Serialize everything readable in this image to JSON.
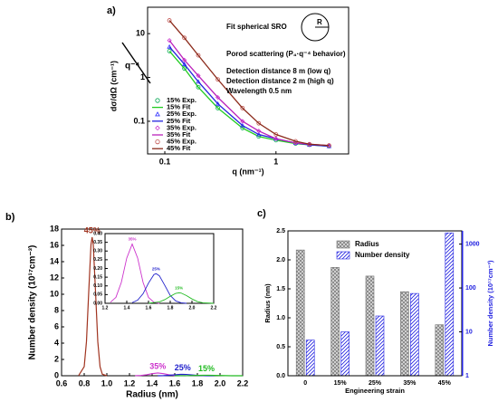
{
  "chart_data": [
    {
      "type": "scatter",
      "panel": "a)",
      "xlabel": "q (nm⁻¹)",
      "ylabel": "dσ/dΩ (cm⁻¹)",
      "xlog": true,
      "ylog": true,
      "xlim": [
        0.07,
        4.5
      ],
      "ylim": [
        0.018,
        40
      ],
      "xticks": [
        0.1,
        1
      ],
      "yticks": [
        0.1,
        1,
        10
      ],
      "annotations": [
        "Fit spherical SRO",
        "Porod scattering (P₄·q⁻⁴ behavior)",
        "Detection distance 8 m (low q)",
        "Detection distance 2 m (high q)",
        "Wavelength 0.5 nm",
        "q⁻⁴",
        "R"
      ],
      "legend": "lower left",
      "series": [
        {
          "name": "15% Exp.",
          "kind": "markers",
          "marker": "circle",
          "color": "#00a650",
          "x": [
            0.11,
            0.15,
            0.2,
            0.3,
            0.5,
            0.7,
            1,
            1.5,
            2,
            3
          ],
          "values": [
            4,
            1.6,
            0.6,
            0.2,
            0.07,
            0.045,
            0.037,
            0.031,
            0.029,
            0.027
          ]
        },
        {
          "name": "15% Fit",
          "kind": "line",
          "color": "#22cc22",
          "x": [
            0.11,
            0.15,
            0.2,
            0.3,
            0.5,
            0.7,
            1,
            1.5,
            2,
            3
          ],
          "values": [
            4,
            1.6,
            0.6,
            0.2,
            0.07,
            0.045,
            0.037,
            0.031,
            0.029,
            0.027
          ]
        },
        {
          "name": "25% Exp.",
          "kind": "markers",
          "marker": "triangle",
          "color": "#3333ff",
          "x": [
            0.11,
            0.15,
            0.2,
            0.3,
            0.5,
            0.7,
            1,
            1.5,
            2,
            3
          ],
          "values": [
            5,
            2,
            0.8,
            0.25,
            0.08,
            0.05,
            0.04,
            0.032,
            0.029,
            0.027
          ]
        },
        {
          "name": "25% Fit",
          "kind": "line",
          "color": "#2222dd",
          "x": [
            0.11,
            0.15,
            0.2,
            0.3,
            0.5,
            0.7,
            1,
            1.5,
            2,
            3
          ],
          "values": [
            5,
            2,
            0.8,
            0.25,
            0.08,
            0.05,
            0.04,
            0.032,
            0.029,
            0.027
          ]
        },
        {
          "name": "35% Exp.",
          "kind": "markers",
          "marker": "diamond",
          "color": "#cc33cc",
          "x": [
            0.11,
            0.15,
            0.2,
            0.3,
            0.5,
            0.7,
            1,
            1.5,
            2,
            3
          ],
          "values": [
            7,
            2.5,
            1.1,
            0.35,
            0.1,
            0.06,
            0.04,
            0.032,
            0.03,
            0.028
          ]
        },
        {
          "name": "35% Fit",
          "kind": "line",
          "color": "#bb22bb",
          "x": [
            0.11,
            0.15,
            0.2,
            0.3,
            0.5,
            0.7,
            1,
            1.5,
            2,
            3
          ],
          "values": [
            7,
            2.5,
            1.1,
            0.35,
            0.1,
            0.06,
            0.04,
            0.032,
            0.03,
            0.028
          ]
        },
        {
          "name": "45% Exp.",
          "kind": "markers",
          "marker": "circle",
          "color": "#c0504d",
          "x": [
            0.11,
            0.15,
            0.2,
            0.3,
            0.5,
            0.7,
            1,
            1.5,
            2,
            3
          ],
          "values": [
            20,
            8,
            3.2,
            0.9,
            0.2,
            0.09,
            0.05,
            0.035,
            0.03,
            0.028
          ]
        },
        {
          "name": "45% Fit",
          "kind": "line",
          "color": "#8b2a1a",
          "x": [
            0.11,
            0.15,
            0.2,
            0.3,
            0.5,
            0.7,
            1,
            1.5,
            2,
            3
          ],
          "values": [
            20,
            8,
            3.2,
            0.9,
            0.2,
            0.09,
            0.05,
            0.035,
            0.03,
            0.028
          ]
        }
      ]
    },
    {
      "type": "line",
      "panel": "b)",
      "xlabel": "Radius (nm)",
      "ylabel": "Number density (10¹⁷cm⁻³)",
      "xlim": [
        0.6,
        2.2
      ],
      "ylim": [
        0,
        18
      ],
      "xticks": [
        0.6,
        0.8,
        {
          "value": 1,
          "label": "1.0"
        },
        1.2,
        1.4,
        1.6,
        1.8,
        {
          "value": 2,
          "label": "2.0"
        },
        2.2
      ],
      "yticks": [
        0,
        2,
        4,
        6,
        8,
        10,
        12,
        14,
        16,
        18
      ],
      "inset": {
        "xlim": [
          1.2,
          2.2
        ],
        "ylim": [
          0,
          0.4
        ],
        "xticks": [
          1.2,
          1.4,
          1.6,
          1.8,
          {
            "value": 2,
            "label": "2.0"
          },
          2.2
        ],
        "yticks": [
          {
            "value": 0,
            "label": "0.00"
          },
          {
            "value": 0.05,
            "label": "0.05"
          },
          {
            "value": 0.1,
            "label": "0.10"
          },
          {
            "value": 0.15,
            "label": "0.15"
          },
          {
            "value": 0.2,
            "label": "0.20"
          },
          {
            "value": 0.25,
            "label": "0.25"
          },
          {
            "value": 0.3,
            "label": "0.30"
          },
          {
            "value": 0.35,
            "label": "0.35"
          },
          {
            "value": 0.4,
            "label": "0.40"
          }
        ]
      },
      "series": [
        {
          "name": "45%",
          "color": "#a0331f",
          "inset": false,
          "x": [
            0.75,
            0.8,
            0.82,
            0.84,
            0.86,
            0.87,
            0.88,
            0.9,
            0.92,
            0.94,
            0.96,
            1.0
          ],
          "values": [
            0.006,
            1.12,
            4.2,
            10.3,
            16.1,
            17,
            16.1,
            10.3,
            4.2,
            1.1,
            0.19,
            0
          ]
        },
        {
          "name": "35%",
          "color": "#cc33cc",
          "inset": true,
          "x": [
            1.25,
            1.3,
            1.35,
            1.4,
            1.45,
            1.5,
            1.55,
            1.6,
            1.65,
            1.7
          ],
          "values": [
            0.006,
            0.034,
            0.12,
            0.26,
            0.34,
            0.26,
            0.12,
            0.034,
            0.006,
            0
          ]
        },
        {
          "name": "25%",
          "color": "#2222cc",
          "inset": true,
          "x": [
            1.45,
            1.5,
            1.55,
            1.6,
            1.65,
            1.67,
            1.7,
            1.75,
            1.8,
            1.85,
            1.9,
            1.95
          ],
          "values": [
            0.004,
            0.018,
            0.055,
            0.116,
            0.165,
            0.17,
            0.158,
            0.103,
            0.045,
            0.014,
            0.003,
            0
          ]
        },
        {
          "name": "15%",
          "color": "#22bb22",
          "inset": true,
          "x": [
            1.6,
            1.7,
            1.75,
            1.8,
            1.85,
            1.88,
            1.9,
            1.95,
            2.0,
            2.05,
            2.1,
            2.2
          ],
          "values": [
            0.0005,
            0.008,
            0.021,
            0.04,
            0.057,
            0.06,
            0.059,
            0.044,
            0.025,
            0.01,
            0.003,
            0
          ]
        }
      ]
    },
    {
      "type": "bar",
      "panel": "c)",
      "xlabel": "Engineering strain",
      "ylabel": "Radius (nm)",
      "y2label": "Number density (10¹⁷cm⁻³)",
      "categories": [
        "0",
        "15%",
        "25%",
        "35%",
        "45%"
      ],
      "ylim": [
        0,
        2.5
      ],
      "yticks": [
        {
          "value": 0,
          "label": "0.0"
        },
        {
          "value": 0.5,
          "label": "0.5"
        },
        {
          "value": 1,
          "label": "1.0"
        },
        {
          "value": 1.5,
          "label": "1.5"
        },
        {
          "value": 2,
          "label": "2.0"
        },
        {
          "value": 2.5,
          "label": "2.5"
        }
      ],
      "y2log": true,
      "y2lim": [
        1,
        2000
      ],
      "y2ticks": [
        1,
        10,
        100,
        1000
      ],
      "legend": "upper center",
      "series": [
        {
          "name": "Radius",
          "color": "#707070",
          "hatch": "cross",
          "values": [
            2.17,
            1.87,
            1.72,
            1.45,
            0.88
          ]
        },
        {
          "name": "Number density",
          "color": "#2020e0",
          "hatch": "diagonal",
          "axis": "y2",
          "values": [
            6.5,
            10,
            23,
            75,
            1800
          ]
        }
      ]
    }
  ]
}
